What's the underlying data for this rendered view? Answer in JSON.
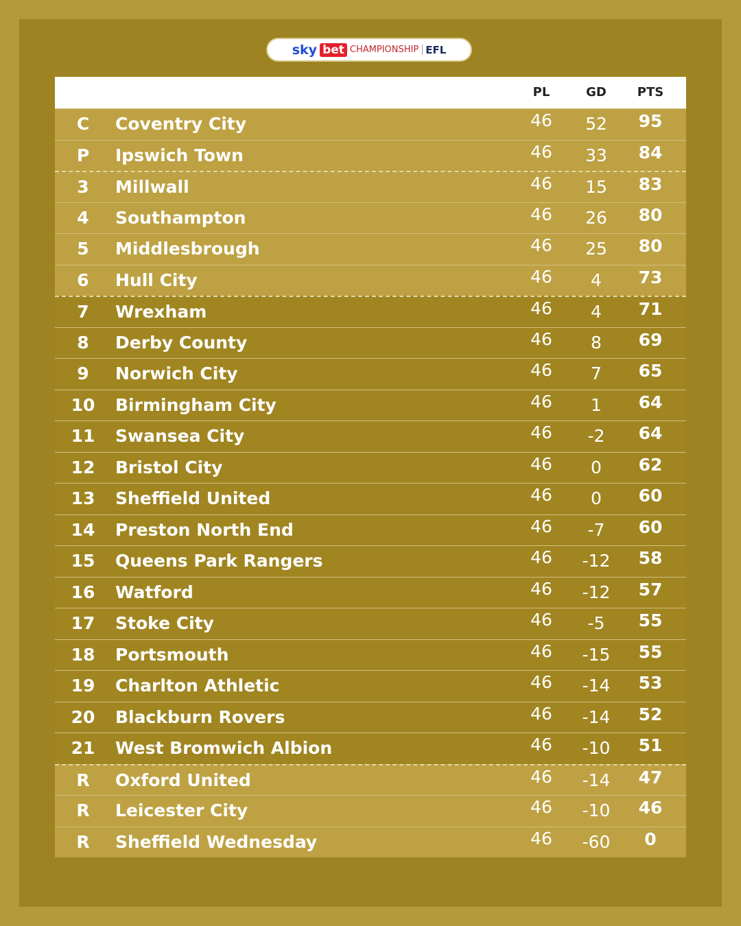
{
  "logo": {
    "sky": "sky",
    "bet": "bet",
    "competition": "CHAMPIONSHIP",
    "league": "EFL"
  },
  "table": {
    "columns": [
      "PL",
      "GD",
      "PTS"
    ],
    "rows": [
      [
        "C",
        "Coventry City",
        46,
        52,
        95
      ],
      [
        "P",
        "Ipswich Town",
        46,
        33,
        84
      ],
      [
        3,
        "Millwall",
        46,
        15,
        83
      ],
      [
        4,
        "Southampton",
        46,
        26,
        80
      ],
      [
        5,
        "Middlesbrough",
        46,
        25,
        80
      ],
      [
        6,
        "Hull City",
        46,
        4,
        73
      ],
      [
        7,
        "Wrexham",
        46,
        4,
        71
      ],
      [
        8,
        "Derby County",
        46,
        8,
        69
      ],
      [
        9,
        "Norwich City",
        46,
        7,
        65
      ],
      [
        10,
        "Birmingham City",
        46,
        1,
        64
      ],
      [
        11,
        "Swansea City",
        46,
        -2,
        64
      ],
      [
        12,
        "Bristol City",
        46,
        0,
        62
      ],
      [
        13,
        "Sheffield United",
        46,
        0,
        60
      ],
      [
        14,
        "Preston North End",
        46,
        -7,
        60
      ],
      [
        15,
        "Queens Park Rangers",
        46,
        -12,
        58
      ],
      [
        16,
        "Watford",
        46,
        -12,
        57
      ],
      [
        17,
        "Stoke City",
        46,
        -5,
        55
      ],
      [
        18,
        "Portsmouth",
        46,
        -15,
        55
      ],
      [
        19,
        "Charlton Athletic",
        46,
        -14,
        53
      ],
      [
        20,
        "Blackburn Rovers",
        46,
        -14,
        52
      ],
      [
        21,
        "West Bromwich Albion",
        46,
        -10,
        51
      ],
      [
        "R",
        "Oxford United",
        46,
        -14,
        47
      ],
      [
        "R",
        "Leicester City",
        46,
        -10,
        46
      ],
      [
        "R",
        "Sheffield Wednesday",
        46,
        -60,
        0
      ]
    ]
  }
}
